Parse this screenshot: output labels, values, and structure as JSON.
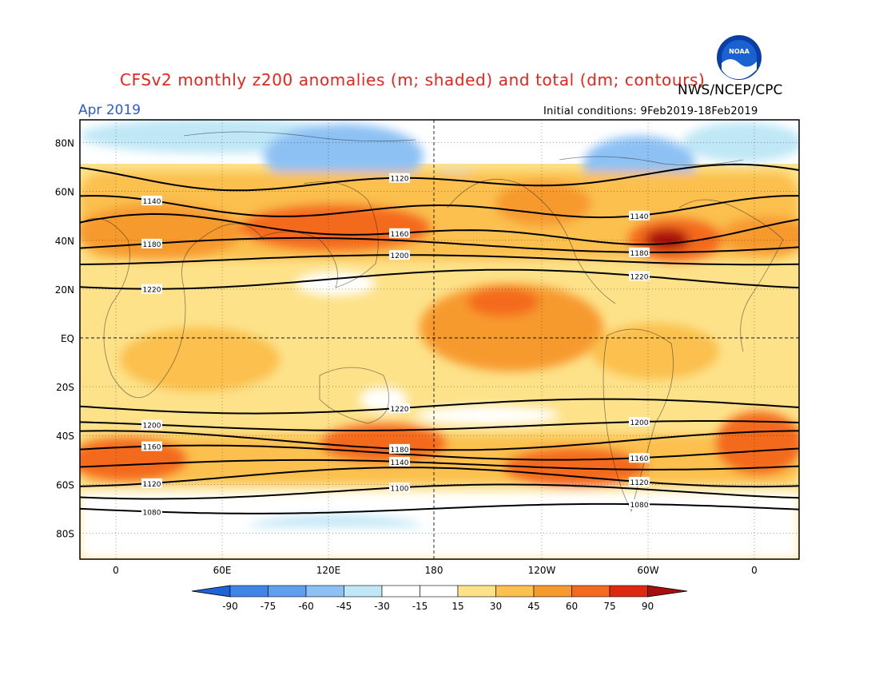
{
  "header": {
    "title": "CFSv2 monthly z200 anomalies (m; shaded) and total (dm; contours)",
    "agency": "NWS/NCEP/CPC",
    "month": "Apr 2019",
    "initial_conditions": "Initial conditions: 9Feb2019-18Feb2019",
    "logo_text": "NOAA"
  },
  "map": {
    "lat_labels": [
      "80N",
      "60N",
      "40N",
      "20N",
      "EQ",
      "20S",
      "40S",
      "60S",
      "80S"
    ],
    "lon_labels": [
      "0",
      "60E",
      "120E",
      "180",
      "120W",
      "60W",
      "0"
    ]
  },
  "colorbar": {
    "labels": [
      "-90",
      "-75",
      "-60",
      "-45",
      "-30",
      "-15",
      "15",
      "30",
      "45",
      "60",
      "75",
      "90"
    ],
    "colors": [
      "#1e63d8",
      "#3f84e6",
      "#5fa0ee",
      "#8dc1f4",
      "#bfe7f6",
      "#ffffff",
      "#fde28a",
      "#fbc04e",
      "#f79a2e",
      "#f46a1e",
      "#dd2812",
      "#a80e0e"
    ]
  },
  "contours": [
    {
      "level": "1080",
      "lat": -70
    },
    {
      "level": "1100",
      "lat": -63
    },
    {
      "level": "1120",
      "lat": -57
    },
    {
      "level": "1140",
      "lat": -52
    },
    {
      "level": "1160",
      "lat": -47
    },
    {
      "level": "1180",
      "lat": -42
    },
    {
      "level": "1200",
      "lat": -36
    },
    {
      "level": "1220",
      "lat": -28
    },
    {
      "level": "1220",
      "lat": 24
    },
    {
      "level": "1200",
      "lat": 32
    },
    {
      "level": "1180",
      "lat": 38
    },
    {
      "level": "1160",
      "lat": 44
    },
    {
      "level": "1140",
      "lat": 53
    },
    {
      "level": "1120",
      "lat": 65
    }
  ]
}
